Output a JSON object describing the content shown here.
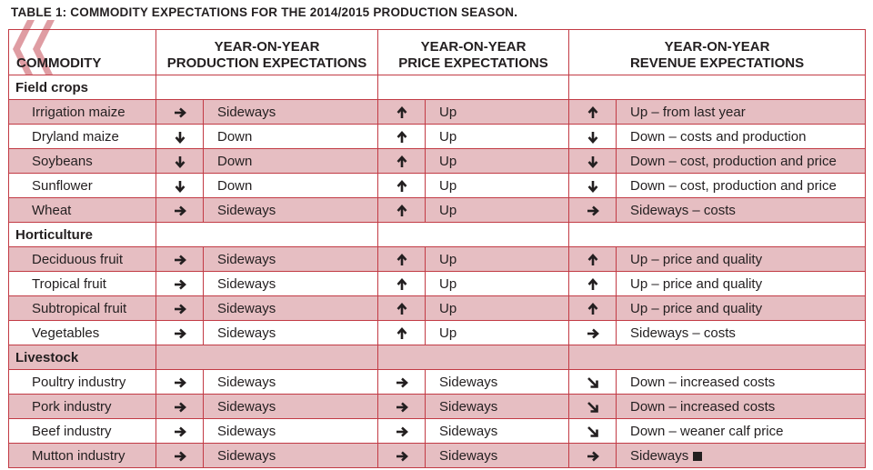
{
  "title": "TABLE 1: COMMODITY EXPECTATIONS FOR THE 2014/2015 PRODUCTION SEASON.",
  "headers": {
    "commodity": "COMMODITY",
    "production_line1": "YEAR-ON-YEAR",
    "production_line2": "PRODUCTION EXPECTATIONS",
    "price_line1": "YEAR-ON-YEAR",
    "price_line2": "PRICE EXPECTATIONS",
    "revenue_line1": "YEAR-ON-YEAR",
    "revenue_line2": "REVENUE EXPECTATIONS"
  },
  "colors": {
    "border": "#c23b45",
    "shade": "#e6bec2",
    "chevron": "#d98c93"
  },
  "categories": [
    {
      "name": "Field crops",
      "rows": [
        {
          "name": "Irrigation maize",
          "prod_dir": "right",
          "prod": "Sideways",
          "price_dir": "up",
          "price": "Up",
          "rev_dir": "up",
          "rev": "Up – from last year"
        },
        {
          "name": "Dryland maize",
          "prod_dir": "down",
          "prod": "Down",
          "price_dir": "up",
          "price": "Up",
          "rev_dir": "down",
          "rev": "Down – costs and production"
        },
        {
          "name": "Soybeans",
          "prod_dir": "down",
          "prod": "Down",
          "price_dir": "up",
          "price": "Up",
          "rev_dir": "down",
          "rev": "Down – cost, production and price"
        },
        {
          "name": "Sunflower",
          "prod_dir": "down",
          "prod": "Down",
          "price_dir": "up",
          "price": "Up",
          "rev_dir": "down",
          "rev": "Down – cost, production and price"
        },
        {
          "name": "Wheat",
          "prod_dir": "right",
          "prod": "Sideways",
          "price_dir": "up",
          "price": "Up",
          "rev_dir": "right",
          "rev": "Sideways – costs"
        }
      ]
    },
    {
      "name": "Horticulture",
      "rows": [
        {
          "name": "Deciduous fruit",
          "prod_dir": "right",
          "prod": "Sideways",
          "price_dir": "up",
          "price": "Up",
          "rev_dir": "up",
          "rev": "Up – price and quality"
        },
        {
          "name": "Tropical fruit",
          "prod_dir": "right",
          "prod": "Sideways",
          "price_dir": "up",
          "price": "Up",
          "rev_dir": "up",
          "rev": "Up – price and quality"
        },
        {
          "name": "Subtropical fruit",
          "prod_dir": "right",
          "prod": "Sideways",
          "price_dir": "up",
          "price": "Up",
          "rev_dir": "up",
          "rev": "Up – price and quality"
        },
        {
          "name": "Vegetables",
          "prod_dir": "right",
          "prod": "Sideways",
          "price_dir": "up",
          "price": "Up",
          "rev_dir": "right",
          "rev": "Sideways – costs"
        }
      ]
    },
    {
      "name": "Livestock",
      "rows": [
        {
          "name": "Poultry industry",
          "prod_dir": "right",
          "prod": "Sideways",
          "price_dir": "right",
          "price": "Sideways",
          "rev_dir": "down-right",
          "rev": "Down – increased costs"
        },
        {
          "name": "Pork industry",
          "prod_dir": "right",
          "prod": "Sideways",
          "price_dir": "right",
          "price": "Sideways",
          "rev_dir": "down-right",
          "rev": "Down – increased costs"
        },
        {
          "name": "Beef industry",
          "prod_dir": "right",
          "prod": "Sideways",
          "price_dir": "right",
          "price": "Sideways",
          "rev_dir": "down-right",
          "rev": "Down – weaner calf price"
        },
        {
          "name": "Mutton industry",
          "prod_dir": "right",
          "prod": "Sideways",
          "price_dir": "right",
          "price": "Sideways",
          "rev_dir": "right",
          "rev": "Sideways",
          "end_mark": true
        }
      ]
    }
  ]
}
